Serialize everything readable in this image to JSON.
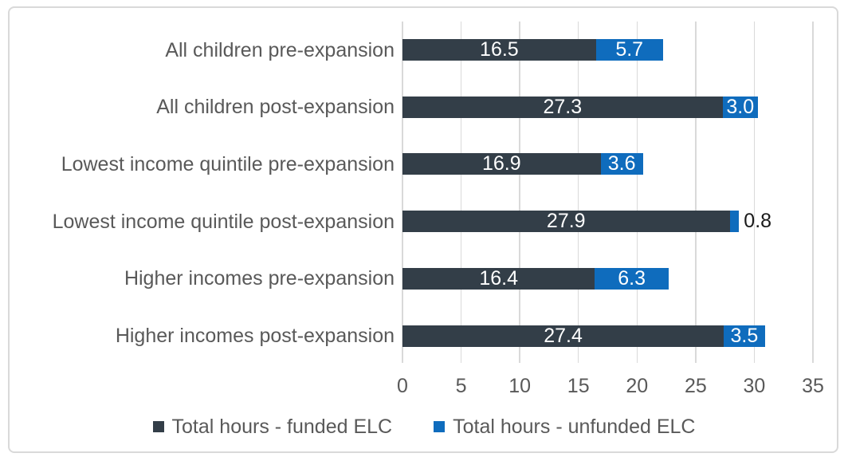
{
  "chart_data": {
    "type": "bar",
    "orientation": "horizontal",
    "stacked": true,
    "title": "",
    "categories": [
      "All children pre-expansion",
      "All children post-expansion",
      "Lowest income quintile pre-expansion",
      "Lowest income quintile post-expansion",
      "Higher incomes pre-expansion",
      "Higher incomes post-expansion"
    ],
    "series": [
      {
        "name": "Total hours - funded ELC",
        "color": "#333E48",
        "label_color": "#FFFFFF",
        "values": [
          16.5,
          27.3,
          16.9,
          27.9,
          16.4,
          27.4
        ],
        "labels": [
          "16.5",
          "27.3",
          "16.9",
          "27.9",
          "16.4",
          "27.4"
        ]
      },
      {
        "name": "Total hours - unfunded ELC",
        "color": "#0F6CBD",
        "label_color": "#FFFFFF",
        "values": [
          5.7,
          3.0,
          3.6,
          0.8,
          6.3,
          3.5
        ],
        "labels": [
          "5.7",
          "3.0",
          "3.6",
          "0.8",
          "6.3",
          "3.5"
        ]
      }
    ],
    "outside_labels": [
      {
        "row": 3,
        "series": 1,
        "color": "#1A1A1A"
      }
    ],
    "xlim": [
      0,
      35
    ],
    "x_ticks": [
      0,
      5,
      10,
      15,
      20,
      25,
      30,
      35
    ],
    "grid": "vertical-only",
    "legend_position": "bottom",
    "axis_text_color": "#595959",
    "gridline_color": "#D9D9D9",
    "frame_border_color": "#D9D9D9",
    "background": "#FFFFFF"
  }
}
